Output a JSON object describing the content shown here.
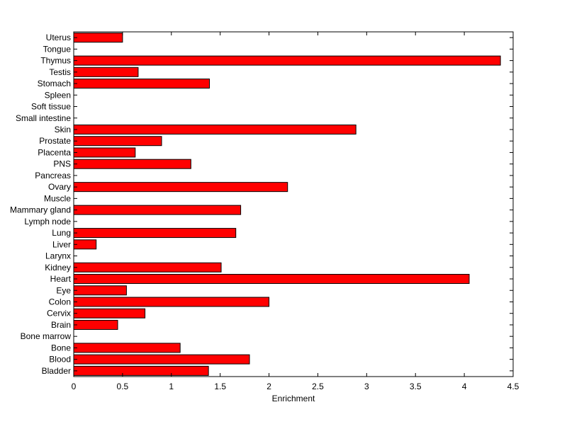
{
  "chart_data": {
    "type": "bar",
    "orientation": "horizontal",
    "title": "",
    "xlabel": "Enrichment",
    "ylabel": "",
    "xlim": [
      0,
      4.5
    ],
    "xticks": [
      "0",
      "0.5",
      "1",
      "1.5",
      "2",
      "2.5",
      "3",
      "3.5",
      "4",
      "4.5"
    ],
    "grid": false,
    "legend": "none",
    "bar_color": "#ff0000",
    "categories": [
      "Bladder",
      "Blood",
      "Bone",
      "Bone marrow",
      "Brain",
      "Cervix",
      "Colon",
      "Eye",
      "Heart",
      "Kidney",
      "Larynx",
      "Liver",
      "Lung",
      "Lymph node",
      "Mammary gland",
      "Muscle",
      "Ovary",
      "Pancreas",
      "PNS",
      "Placenta",
      "Prostate",
      "Skin",
      "Small intestine",
      "Soft tissue",
      "Spleen",
      "Stomach",
      "Testis",
      "Thymus",
      "Tongue",
      "Uterus"
    ],
    "values": [
      1.38,
      1.8,
      1.09,
      0,
      0.45,
      0.73,
      2.0,
      0.54,
      4.05,
      1.51,
      0,
      0.23,
      1.66,
      0,
      1.71,
      0,
      2.19,
      0,
      1.2,
      0.63,
      0.9,
      2.89,
      0,
      0,
      0,
      1.39,
      0.66,
      4.37,
      0,
      0.5
    ]
  }
}
